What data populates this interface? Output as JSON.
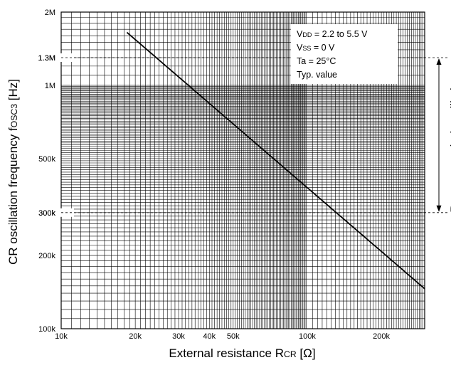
{
  "chart_data": {
    "type": "line",
    "xscale": "log",
    "yscale": "log",
    "xlim": [
      10000,
      300000
    ],
    "ylim": [
      100000,
      2000000
    ],
    "xlabel": {
      "main": "External resistance R",
      "sub": "CR",
      "unit": "[Ω]"
    },
    "ylabel": {
      "main": "CR oscillation frequency f",
      "sub": "OSC3",
      "unit": "[Hz]"
    },
    "x_ticks": [
      {
        "value": 10000,
        "label": "10k"
      },
      {
        "value": 20000,
        "label": "20k"
      },
      {
        "value": 30000,
        "label": "30k"
      },
      {
        "value": 40000,
        "label": "40k"
      },
      {
        "value": 50000,
        "label": "50k"
      },
      {
        "value": 100000,
        "label": "100k"
      },
      {
        "value": 200000,
        "label": "200k"
      }
    ],
    "y_ticks": [
      {
        "value": 100000,
        "label": "100k"
      },
      {
        "value": 200000,
        "label": "200k"
      },
      {
        "value": 300000,
        "label": "300k"
      },
      {
        "value": 500000,
        "label": "500k"
      },
      {
        "value": 1000000,
        "label": "1M"
      },
      {
        "value": 1300000,
        "label": "1.3M"
      },
      {
        "value": 2000000,
        "label": "2M"
      }
    ],
    "grid": true,
    "series": [
      {
        "x": [
          18500,
          300000
        ],
        "y": [
          1650000,
          146000
        ]
      }
    ],
    "reference_lines": [
      1300000,
      300000
    ],
    "range_annotation": {
      "label": "Recommended oscillation range",
      "from": 300000,
      "to": 1300000
    },
    "conditions": [
      [
        {
          "t": "V"
        },
        {
          "t": "DD",
          "sub": true
        },
        {
          "t": " = 2.2 to 5.5 V"
        }
      ],
      [
        {
          "t": "V"
        },
        {
          "t": "SS",
          "sub": true
        },
        {
          "t": " = 0 V"
        }
      ],
      [
        {
          "t": "Ta = 25°C"
        }
      ],
      [
        {
          "t": "Typ. value"
        }
      ]
    ],
    "legend_position": "top-right",
    "colors": {
      "grid": "#000000",
      "line": "#000000",
      "background": "#ffffff"
    }
  }
}
